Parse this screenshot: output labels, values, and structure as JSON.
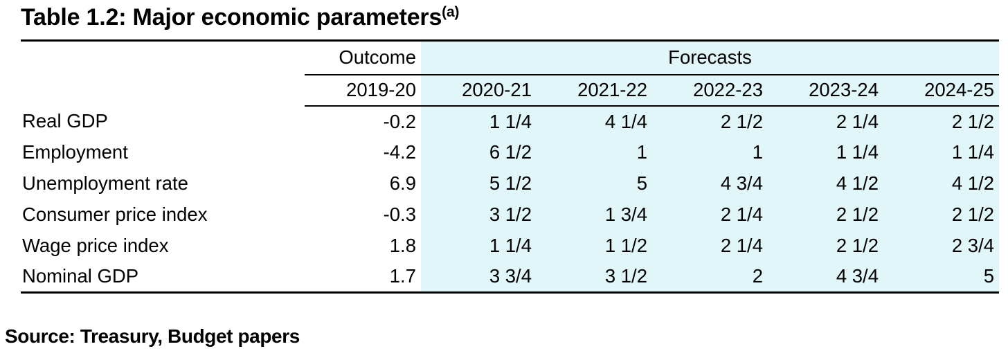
{
  "title": {
    "text": "Table 1.2: Major economic parameters",
    "superscript": "(a)"
  },
  "colors": {
    "highlight": "#e1f6f8",
    "rule": "#000000",
    "text": "#000000"
  },
  "table": {
    "header": {
      "outcome_label": "Outcome",
      "forecasts_label": "Forecasts",
      "outcome_year": "2019-20",
      "forecast_years": [
        "2020-21",
        "2021-22",
        "2022-23",
        "2023-24",
        "2024-25"
      ]
    },
    "rows": [
      {
        "label": "Real GDP",
        "outcome": "-0.2",
        "forecasts": [
          "1 1/4",
          "4 1/4",
          "2 1/2",
          "2 1/4",
          "2 1/2"
        ]
      },
      {
        "label": "Employment",
        "outcome": "-4.2",
        "forecasts": [
          "6 1/2",
          "1",
          "1",
          "1 1/4",
          "1 1/4"
        ]
      },
      {
        "label": "Unemployment rate",
        "outcome": "6.9",
        "forecasts": [
          "5 1/2",
          "5",
          "4 3/4",
          "4 1/2",
          "4 1/2"
        ]
      },
      {
        "label": "Consumer price index",
        "outcome": "-0.3",
        "forecasts": [
          "3 1/2",
          "1 3/4",
          "2 1/4",
          "2 1/2",
          "2 1/2"
        ]
      },
      {
        "label": "Wage price index",
        "outcome": "1.8",
        "forecasts": [
          "1 1/4",
          "1 1/2",
          "2 1/4",
          "2 1/2",
          "2 3/4"
        ]
      },
      {
        "label": "Nominal GDP",
        "outcome": "1.7",
        "forecasts": [
          "3 3/4",
          "3 1/2",
          "2",
          "4 3/4",
          "5"
        ]
      }
    ]
  },
  "source": "Source: Treasury, Budget papers"
}
